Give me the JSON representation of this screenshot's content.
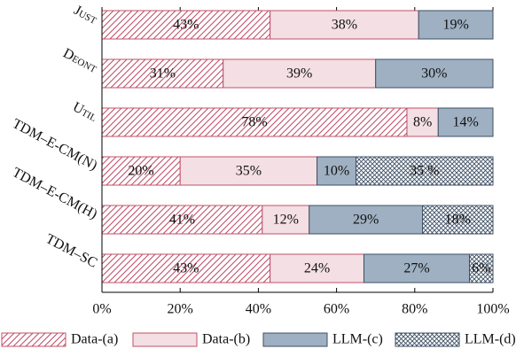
{
  "chart_data": {
    "type": "stacked-barh",
    "categories": [
      "Just",
      "Deont",
      "Util",
      "TDM–E-CM(N)",
      "TDM–E-CM(H)",
      "TDM–SC"
    ],
    "series": [
      {
        "name": "Data-(a)",
        "color": "#c0506a",
        "fill": "#ffffff",
        "hatch": "diagonal",
        "values": [
          43,
          31,
          78,
          20,
          41,
          43
        ],
        "value_labels": [
          "43%",
          "31%",
          "78%",
          "20%",
          "41%",
          "43%"
        ]
      },
      {
        "name": "Data-(b)",
        "color": "#c0506a",
        "fill": "#f3dfe4",
        "hatch": null,
        "values": [
          38,
          39,
          8,
          35,
          12,
          24
        ],
        "value_labels": [
          "38%",
          "39%",
          "8%",
          "35%",
          "12%",
          "24%"
        ]
      },
      {
        "name": "LLM-(c)",
        "color": "#3e4f64",
        "fill": "#9fb0c2",
        "hatch": null,
        "values": [
          19,
          30,
          14,
          10,
          29,
          27
        ],
        "value_labels": [
          "19%",
          "30%",
          "14%",
          "10%",
          "29%",
          "27%"
        ]
      },
      {
        "name": "LLM-(d)",
        "color": "#3e4f64",
        "fill": "#ffffff",
        "hatch": "cross",
        "values": [
          null,
          null,
          null,
          35,
          18,
          6
        ],
        "value_labels": [
          null,
          null,
          null,
          "35 %",
          "18%",
          "6%"
        ]
      }
    ],
    "xlim": [
      0,
      100
    ],
    "xticks": [
      {
        "value": 0,
        "label": "0%"
      },
      {
        "value": 20,
        "label": "20%"
      },
      {
        "value": 40,
        "label": "40%"
      },
      {
        "value": 60,
        "label": "60%"
      },
      {
        "value": 80,
        "label": "80%"
      },
      {
        "value": 100,
        "label": "100%"
      }
    ]
  }
}
